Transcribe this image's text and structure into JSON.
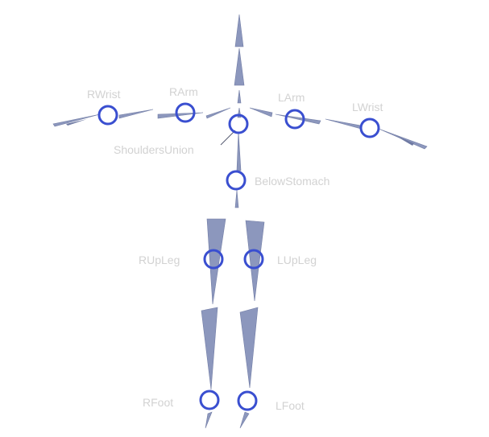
{
  "joints": {
    "rwrist": {
      "label": "RWrist"
    },
    "rarm": {
      "label": "RArm"
    },
    "larm": {
      "label": "LArm"
    },
    "lwrist": {
      "label": "LWrist"
    },
    "shoulders_union": {
      "label": "ShouldersUnion"
    },
    "below_stomach": {
      "label": "BelowStomach"
    },
    "rupleg": {
      "label": "RUpLeg"
    },
    "lupleg": {
      "label": "LUpLeg"
    },
    "rfoot": {
      "label": "RFoot"
    },
    "lfoot": {
      "label": "LFoot"
    }
  },
  "colors": {
    "bone": "#8c97bd",
    "joint_ring": "#3a4fd0",
    "label": "#d2d2d2",
    "background": "#ffffff"
  }
}
